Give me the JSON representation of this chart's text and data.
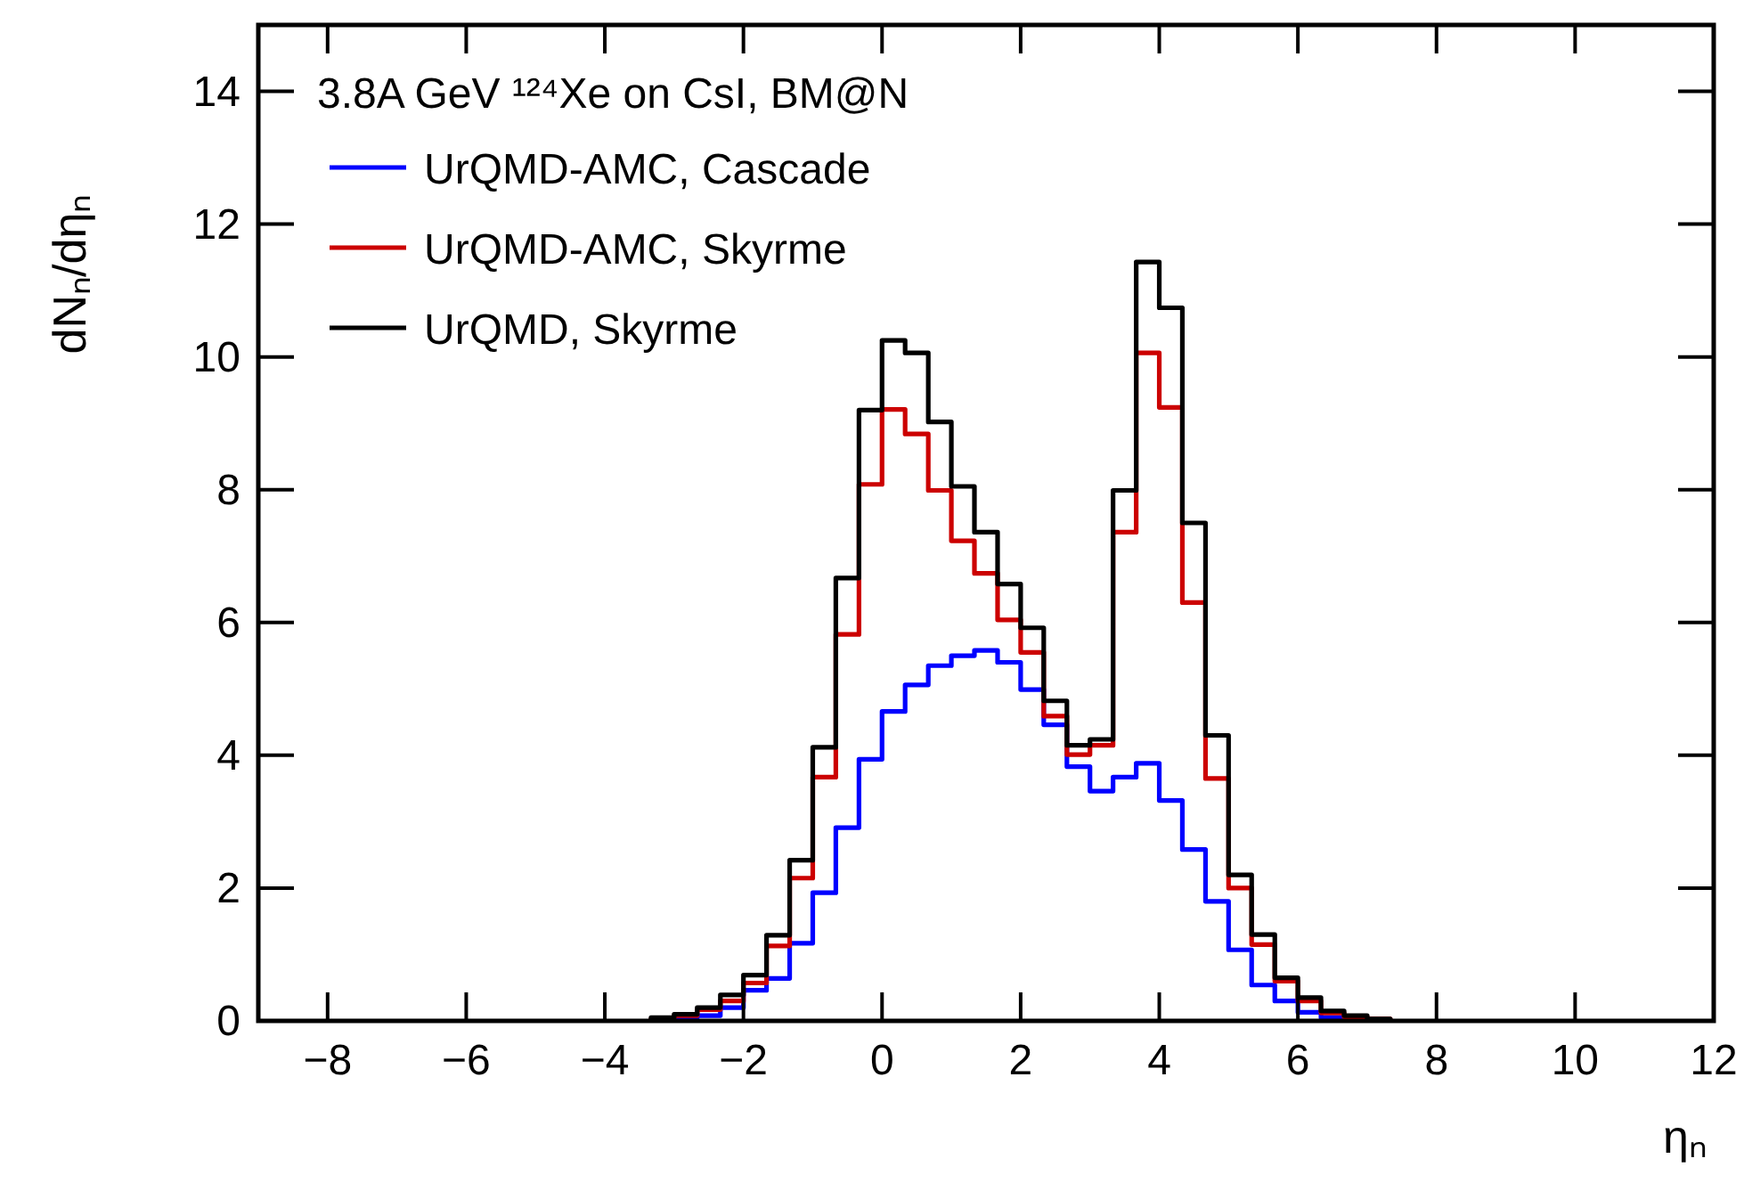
{
  "chart_data": {
    "type": "histogram",
    "title": "3.8A GeV ¹²⁴Xe on CsI, BM@N",
    "xlabel": "ηₙ",
    "ylabel": "dNₙ/dηₙ",
    "bins": [
      -3.333,
      -3,
      -2.667,
      -2.333,
      -2,
      -1.667,
      -1.333,
      -1,
      -0.667,
      -0.333,
      0,
      0.333,
      0.667,
      1,
      1.333,
      1.667,
      2,
      2.333,
      2.667,
      3,
      3.333,
      3.667,
      4,
      4.333,
      4.667,
      5,
      5.333,
      5.667,
      6,
      6.333,
      6.667,
      7,
      7.333
    ],
    "series": [
      {
        "name": "UrQMD-AMC, Cascade",
        "color": "#0000ff",
        "values": [
          0.02,
          0.05,
          0.08,
          0.2,
          0.46,
          0.64,
          1.17,
          1.93,
          2.91,
          3.94,
          4.66,
          5.06,
          5.35,
          5.5,
          5.58,
          5.4,
          4.99,
          4.46,
          3.83,
          3.46,
          3.67,
          3.88,
          3.32,
          2.58,
          1.8,
          1.07,
          0.54,
          0.3,
          0.13,
          0.05,
          0.02,
          0.01
        ]
      },
      {
        "name": "UrQMD-AMC, Skyrme",
        "color": "#cc0000",
        "values": [
          0.03,
          0.08,
          0.17,
          0.3,
          0.57,
          1.13,
          2.15,
          3.67,
          5.82,
          8.08,
          9.21,
          8.84,
          7.99,
          7.23,
          6.74,
          6.04,
          5.55,
          4.59,
          4.01,
          4.15,
          7.36,
          10.06,
          9.24,
          6.3,
          3.65,
          2.0,
          1.15,
          0.6,
          0.3,
          0.12,
          0.06,
          0.03
        ]
      },
      {
        "name": "UrQMD, Skyrme",
        "color": "#000000",
        "values": [
          0.05,
          0.1,
          0.2,
          0.39,
          0.69,
          1.29,
          2.42,
          4.12,
          6.67,
          9.2,
          10.25,
          10.06,
          9.02,
          8.05,
          7.36,
          6.58,
          5.92,
          4.82,
          4.15,
          4.24,
          7.99,
          11.43,
          10.74,
          7.5,
          4.3,
          2.2,
          1.3,
          0.65,
          0.35,
          0.15,
          0.08,
          0.03
        ]
      }
    ],
    "xlim": [
      -9,
      12
    ],
    "xticks": [
      -8,
      -6,
      -4,
      -2,
      0,
      2,
      4,
      6,
      8,
      10,
      12
    ],
    "ylim": [
      0,
      15
    ],
    "yticks": [
      0,
      2,
      4,
      6,
      8,
      10,
      12,
      14
    ],
    "legend": "top left",
    "grid": false
  }
}
